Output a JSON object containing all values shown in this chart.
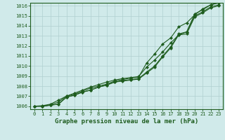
{
  "xlabel": "Graphe pression niveau de la mer (hPa)",
  "xlim": [
    -0.5,
    23.5
  ],
  "ylim": [
    1005.7,
    1016.3
  ],
  "yticks": [
    1006,
    1007,
    1008,
    1009,
    1010,
    1011,
    1012,
    1013,
    1014,
    1015,
    1016
  ],
  "xticks": [
    0,
    1,
    2,
    3,
    4,
    5,
    6,
    7,
    8,
    9,
    10,
    11,
    12,
    13,
    14,
    15,
    16,
    17,
    18,
    19,
    20,
    21,
    22,
    23
  ],
  "bg_color": "#d0eaea",
  "line_color": "#1e5c1e",
  "grid_color": "#b0d0d0",
  "lines": [
    [
      1006.0,
      1006.0,
      1006.1,
      1006.2,
      1006.9,
      1007.1,
      1007.4,
      1007.6,
      1007.9,
      1008.1,
      1008.4,
      1008.5,
      1008.6,
      1008.7,
      1009.3,
      1009.9,
      1010.9,
      1011.8,
      1013.1,
      1013.2,
      1014.9,
      1015.3,
      1015.8,
      1016.0
    ],
    [
      1006.0,
      1006.0,
      1006.1,
      1006.2,
      1006.9,
      1007.1,
      1007.4,
      1007.6,
      1007.9,
      1008.1,
      1008.4,
      1008.55,
      1008.65,
      1008.75,
      1009.4,
      1010.0,
      1011.0,
      1011.9,
      1013.2,
      1013.4,
      1015.0,
      1015.4,
      1015.9,
      1016.1
    ],
    [
      1006.0,
      1006.0,
      1006.15,
      1006.4,
      1007.0,
      1007.2,
      1007.5,
      1007.8,
      1008.0,
      1008.2,
      1008.5,
      1008.65,
      1008.8,
      1008.9,
      1010.3,
      1011.2,
      1012.2,
      1012.8,
      1013.9,
      1014.3,
      1015.1,
      1015.7,
      1016.1,
      1016.3
    ],
    [
      1006.0,
      1006.05,
      1006.2,
      1006.6,
      1007.0,
      1007.3,
      1007.6,
      1007.9,
      1008.15,
      1008.4,
      1008.6,
      1008.75,
      1008.85,
      1008.95,
      1009.9,
      1010.6,
      1011.4,
      1012.3,
      1013.1,
      1013.4,
      1015.2,
      1015.6,
      1016.1,
      1016.3
    ]
  ],
  "marker_style": "D",
  "marker_size": 2.2,
  "linewidth": 0.8,
  "xlabel_fontsize": 6.5,
  "tick_fontsize": 5,
  "tick_color": "#1e5c1e",
  "label_color": "#1e5c1e",
  "border_color": "#1e5c1e",
  "spine_linewidth": 0.8
}
